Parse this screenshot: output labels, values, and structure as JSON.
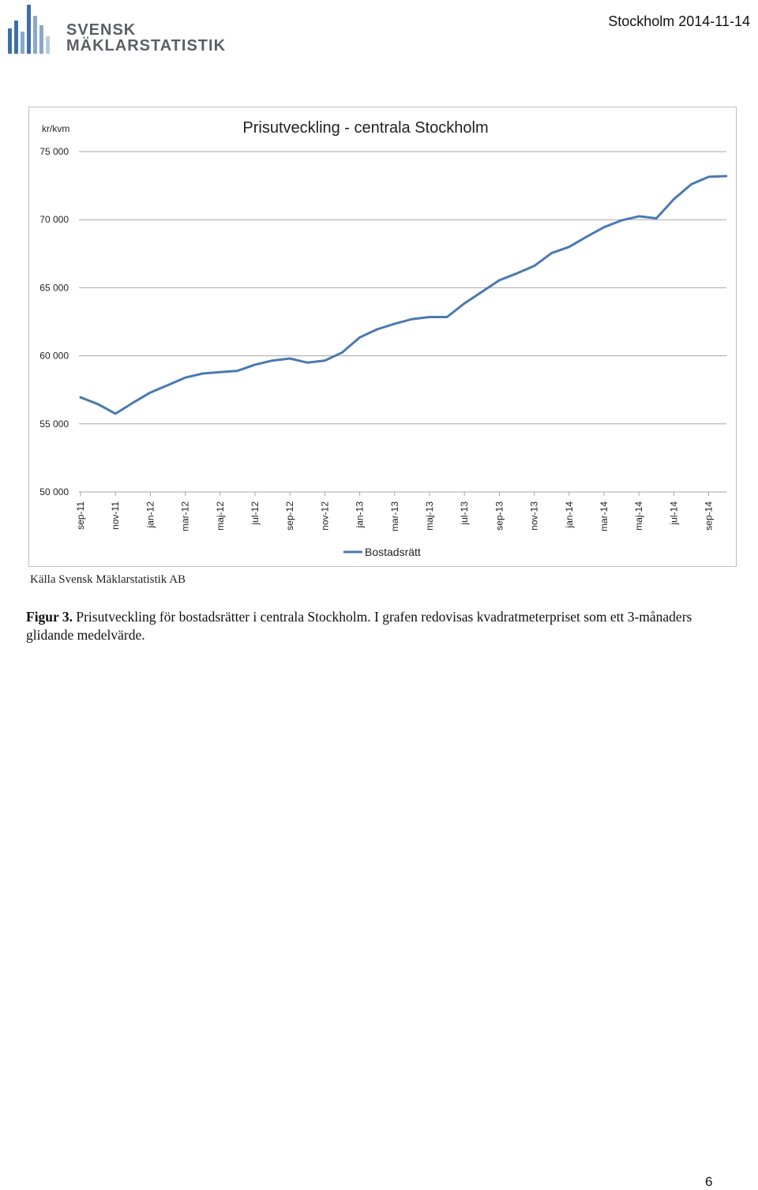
{
  "header": {
    "logo_line1": "SVENSK",
    "logo_line2": "MÄKLARSTATISTIK",
    "date": "Stockholm 2014-11-14"
  },
  "chart_data": {
    "type": "line",
    "title": "Prisutveckling - centrala Stockholm",
    "ylabel": "kr/kvm",
    "ylim": [
      50000,
      75000
    ],
    "yticks": [
      50000,
      55000,
      60000,
      65000,
      70000,
      75000
    ],
    "ytick_labels": [
      "50 000",
      "55 000",
      "60 000",
      "65 000",
      "70 000",
      "75 000"
    ],
    "grid": true,
    "legend_position": "bottom",
    "x_tick_labels": [
      "sep-11",
      "nov-11",
      "jan-12",
      "mar-12",
      "maj-12",
      "jul-12",
      "sep-12",
      "nov-12",
      "jan-13",
      "mar-13",
      "maj-13",
      "jul-13",
      "sep-13",
      "nov-13",
      "jan-14",
      "mar-14",
      "maj-14",
      "jul-14",
      "sep-14"
    ],
    "x": [
      "sep-11",
      "okt-11",
      "nov-11",
      "dec-11",
      "jan-12",
      "feb-12",
      "mar-12",
      "apr-12",
      "maj-12",
      "jun-12",
      "jul-12",
      "aug-12",
      "sep-12",
      "okt-12",
      "nov-12",
      "dec-12",
      "jan-13",
      "feb-13",
      "mar-13",
      "apr-13",
      "maj-13",
      "jun-13",
      "jul-13",
      "aug-13",
      "sep-13",
      "okt-13",
      "nov-13",
      "dec-13",
      "jan-14",
      "feb-14",
      "mar-14",
      "apr-14",
      "maj-14",
      "jun-14",
      "jul-14",
      "aug-14",
      "sep-14",
      "okt-14"
    ],
    "series": [
      {
        "name": "Bostadsrätt",
        "color": "#4a7ab0",
        "values": [
          56950,
          56450,
          55750,
          56550,
          57300,
          57850,
          58400,
          58700,
          58800,
          58900,
          59350,
          59650,
          59800,
          59500,
          59650,
          60250,
          61350,
          61950,
          62350,
          62700,
          62850,
          62850,
          63850,
          64700,
          65550,
          66050,
          66600,
          67550,
          68000,
          68750,
          69450,
          69950,
          70250,
          70100,
          71500,
          72600,
          73150,
          73200
        ]
      }
    ]
  },
  "source": "Källa Svensk Mäklarstatistik AB",
  "caption": {
    "label": "Figur 3.",
    "text": " Prisutveckling för bostadsrätter i centrala Stockholm. I grafen redovisas kvadratmeterpriset som ett 3-månaders glidande medelvärde."
  },
  "page_number": "6"
}
